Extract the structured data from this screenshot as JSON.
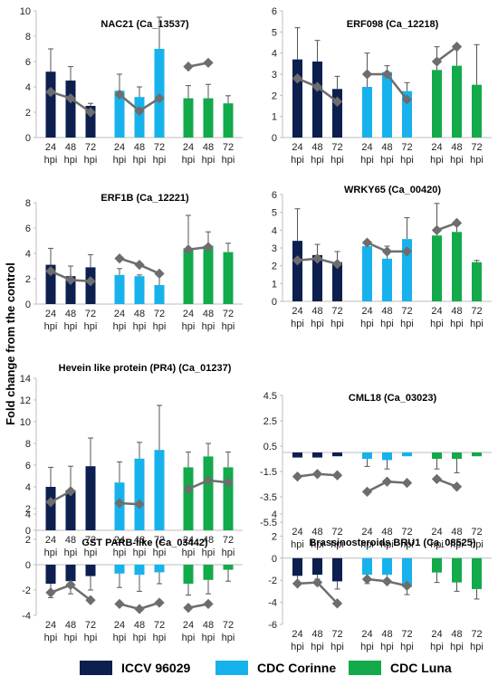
{
  "figure": {
    "ylabel": "Fold change from the control",
    "legend": [
      {
        "label": "ICCV 96029",
        "color": "#0d1f4f"
      },
      {
        "label": "CDC Corinne",
        "color": "#17b2ec"
      },
      {
        "label": "CDC Luna",
        "color": "#12aa4a"
      }
    ]
  },
  "chart_data": [
    {
      "type": "bar",
      "title": "NAC21 (Ca_13537)",
      "groups": [
        "ICCV 96029",
        "CDC Corinne",
        "CDC Luna"
      ],
      "categories": [
        "24 hpi",
        "48 hpi",
        "72 hpi"
      ],
      "ylim": [
        0,
        10
      ],
      "yticks": [
        0,
        2,
        4,
        6,
        8,
        10
      ],
      "series": [
        {
          "name": "ICCV 96029",
          "color": "#0d1f4f",
          "values": [
            5.2,
            4.5,
            2.5
          ],
          "errors": [
            1.8,
            1.1,
            0.2
          ],
          "trend": [
            3.6,
            3.1,
            2.0
          ]
        },
        {
          "name": "CDC Corinne",
          "color": "#17b2ec",
          "values": [
            3.7,
            3.2,
            7.0
          ],
          "errors": [
            1.3,
            0.8,
            2.5
          ],
          "trend": [
            3.4,
            2.1,
            3.1
          ]
        },
        {
          "name": "CDC Luna",
          "color": "#12aa4a",
          "values": [
            3.1,
            3.1,
            2.7
          ],
          "errors": [
            1.0,
            1.1,
            0.6
          ],
          "trend": [
            5.6,
            5.9,
            null
          ]
        }
      ]
    },
    {
      "type": "bar",
      "title": "ERF098 (Ca_12218)",
      "groups": [
        "ICCV 96029",
        "CDC Corinne",
        "CDC Luna"
      ],
      "categories": [
        "24 hpi",
        "48 hpi",
        "72 hpi"
      ],
      "ylim": [
        0,
        6
      ],
      "yticks": [
        0,
        1,
        2,
        3,
        4,
        5,
        6
      ],
      "series": [
        {
          "name": "ICCV 96029",
          "color": "#0d1f4f",
          "values": [
            3.7,
            3.6,
            2.3
          ],
          "errors": [
            1.5,
            1.0,
            0.6
          ],
          "trend": [
            2.8,
            2.4,
            1.7
          ]
        },
        {
          "name": "CDC Corinne",
          "color": "#17b2ec",
          "values": [
            2.4,
            3.1,
            2.2
          ],
          "errors": [
            1.6,
            0.3,
            0.4
          ],
          "trend": [
            3.0,
            3.0,
            1.8
          ]
        },
        {
          "name": "CDC Luna",
          "color": "#12aa4a",
          "values": [
            3.2,
            3.4,
            2.5
          ],
          "errors": [
            1.1,
            1.0,
            1.9
          ],
          "trend": [
            3.6,
            4.3,
            null
          ]
        }
      ]
    },
    {
      "type": "bar",
      "title": "ERF1B (Ca_12221)",
      "groups": [
        "ICCV 96029",
        "CDC Corinne",
        "CDC Luna"
      ],
      "categories": [
        "24 hpi",
        "48 hpi",
        "72 hpi"
      ],
      "ylim": [
        0,
        8
      ],
      "yticks": [
        0,
        2,
        4,
        6,
        8
      ],
      "series": [
        {
          "name": "ICCV 96029",
          "color": "#0d1f4f",
          "values": [
            3.1,
            2.2,
            2.9
          ],
          "errors": [
            1.3,
            0.8,
            1.0
          ],
          "trend": [
            2.6,
            1.9,
            1.8
          ]
        },
        {
          "name": "CDC Corinne",
          "color": "#17b2ec",
          "values": [
            2.3,
            2.2,
            1.5
          ],
          "errors": [
            0.5,
            0.1,
            0.9
          ],
          "trend": [
            3.6,
            3.1,
            2.4
          ]
        },
        {
          "name": "CDC Luna",
          "color": "#12aa4a",
          "values": [
            4.4,
            4.6,
            4.1
          ],
          "errors": [
            2.6,
            1.1,
            0.7
          ],
          "trend": [
            4.3,
            4.5,
            null
          ]
        }
      ]
    },
    {
      "type": "bar",
      "title": "WRKY65 (Ca_00420)",
      "groups": [
        "ICCV 96029",
        "CDC Corinne",
        "CDC Luna"
      ],
      "categories": [
        "24 hpi",
        "48 hpi",
        "72 hpi"
      ],
      "ylim": [
        0,
        6
      ],
      "yticks": [
        0,
        1,
        2,
        3,
        4,
        5,
        6
      ],
      "series": [
        {
          "name": "ICCV 96029",
          "color": "#0d1f4f",
          "values": [
            3.4,
            2.6,
            2.2
          ],
          "errors": [
            1.8,
            0.6,
            0.6
          ],
          "trend": [
            2.3,
            2.4,
            2.1
          ]
        },
        {
          "name": "CDC Corinne",
          "color": "#17b2ec",
          "values": [
            3.1,
            2.4,
            3.5
          ],
          "errors": [
            0.3,
            0.7,
            1.2
          ],
          "trend": [
            3.3,
            2.8,
            2.8
          ]
        },
        {
          "name": "CDC Luna",
          "color": "#12aa4a",
          "values": [
            3.7,
            3.9,
            2.2
          ],
          "errors": [
            1.8,
            0.6,
            0.1
          ],
          "trend": [
            4.0,
            4.4,
            null
          ]
        }
      ]
    },
    {
      "type": "bar",
      "title": "Hevein like protein (PR4) (Ca_01237)",
      "groups": [
        "ICCV 96029",
        "CDC Corinne",
        "CDC Luna"
      ],
      "categories": [
        "24 hpi",
        "48 hpi",
        "72 hpi"
      ],
      "ylim": [
        0,
        14
      ],
      "yticks": [
        0,
        2,
        4,
        6,
        8,
        10,
        12,
        14
      ],
      "series": [
        {
          "name": "ICCV 96029",
          "color": "#0d1f4f",
          "values": [
            4.0,
            3.7,
            5.9
          ],
          "errors": [
            1.8,
            2.2,
            2.6
          ],
          "trend": [
            2.6,
            3.6,
            null
          ]
        },
        {
          "name": "CDC Corinne",
          "color": "#17b2ec",
          "values": [
            4.4,
            6.6,
            7.4
          ],
          "errors": [
            1.9,
            1.5,
            4.1
          ],
          "trend": [
            2.5,
            2.4,
            null
          ]
        },
        {
          "name": "CDC Luna",
          "color": "#12aa4a",
          "values": [
            5.8,
            6.8,
            5.8
          ],
          "errors": [
            1.4,
            1.2,
            1.4
          ],
          "trend": [
            3.8,
            4.6,
            4.4
          ]
        }
      ]
    },
    {
      "type": "bar",
      "title": "CML18 (Ca_03023)",
      "groups": [
        "ICCV 96029",
        "CDC Corinne",
        "CDC Luna"
      ],
      "categories": [
        "24 hpi",
        "48 hpi",
        "72 hpi"
      ],
      "ylim": [
        -5.5,
        4.5
      ],
      "yticks": [
        4.5,
        2.5,
        0.5,
        -1.5,
        -3.5,
        -5.5
      ],
      "series": [
        {
          "name": "ICCV 96029",
          "color": "#0d1f4f",
          "values": [
            -0.4,
            -0.4,
            -0.3
          ],
          "errors": [
            0.0,
            0.0,
            0.0
          ],
          "trend": [
            -1.9,
            -1.7,
            -1.8
          ]
        },
        {
          "name": "CDC Corinne",
          "color": "#17b2ec",
          "values": [
            -0.5,
            -0.6,
            -0.3
          ],
          "errors": [
            0.6,
            0.7,
            0.0
          ],
          "trend": [
            -3.1,
            -2.3,
            -2.4
          ]
        },
        {
          "name": "CDC Luna",
          "color": "#12aa4a",
          "values": [
            -0.5,
            -0.5,
            -0.3
          ],
          "errors": [
            0.8,
            1.1,
            0.0
          ],
          "trend": [
            -2.1,
            -2.7,
            null
          ]
        }
      ]
    },
    {
      "type": "bar",
      "title": "GST PARB-like (Ca_03442)",
      "groups": [
        "ICCV 96029",
        "CDC Corinne",
        "CDC Luna"
      ],
      "categories": [
        "24 hpi",
        "48 hpi",
        "72 hpi"
      ],
      "ylim": [
        -4,
        4
      ],
      "yticks": [
        4,
        2,
        0,
        -2,
        -4
      ],
      "series": [
        {
          "name": "ICCV 96029",
          "color": "#0d1f4f",
          "values": [
            -1.5,
            -1.3,
            -0.9
          ],
          "errors": [
            1.1,
            1.0,
            1.1
          ],
          "trend": [
            -2.2,
            -1.6,
            -2.8
          ]
        },
        {
          "name": "CDC Corinne",
          "color": "#17b2ec",
          "values": [
            -0.7,
            -0.8,
            -0.6
          ],
          "errors": [
            1.1,
            1.3,
            0.9
          ],
          "trend": [
            -3.1,
            -3.5,
            -3.0
          ]
        },
        {
          "name": "CDC Luna",
          "color": "#12aa4a",
          "values": [
            -1.5,
            -1.2,
            -0.4
          ],
          "errors": [
            0.9,
            1.1,
            0.9
          ],
          "trend": [
            -3.4,
            -3.1,
            null
          ]
        }
      ]
    },
    {
      "type": "bar",
      "title": "Brassinosteroids BRU1 (Ca_08525)",
      "groups": [
        "ICCV 96029",
        "CDC Corinne",
        "CDC Luna"
      ],
      "categories": [
        "24 hpi",
        "48 hpi",
        "72 hpi"
      ],
      "ylim": [
        -6,
        4
      ],
      "yticks": [
        4,
        2,
        0,
        -2,
        -4,
        -6
      ],
      "series": [
        {
          "name": "ICCV 96029",
          "color": "#0d1f4f",
          "values": [
            -1.6,
            -1.5,
            -2.1
          ],
          "errors": [
            0.6,
            0.4,
            0.7
          ],
          "trend": [
            -2.3,
            -2.2,
            -4.1
          ]
        },
        {
          "name": "CDC Corinne",
          "color": "#17b2ec",
          "values": [
            -1.5,
            -1.5,
            -2.6
          ],
          "errors": [
            0.8,
            0.6,
            0.7
          ],
          "trend": [
            -1.9,
            -2.1,
            -2.5
          ]
        },
        {
          "name": "CDC Luna",
          "color": "#12aa4a",
          "values": [
            -1.3,
            -2.2,
            -2.8
          ],
          "errors": [
            0.9,
            0.8,
            0.9
          ],
          "trend": [
            null,
            null,
            null
          ]
        }
      ]
    }
  ]
}
